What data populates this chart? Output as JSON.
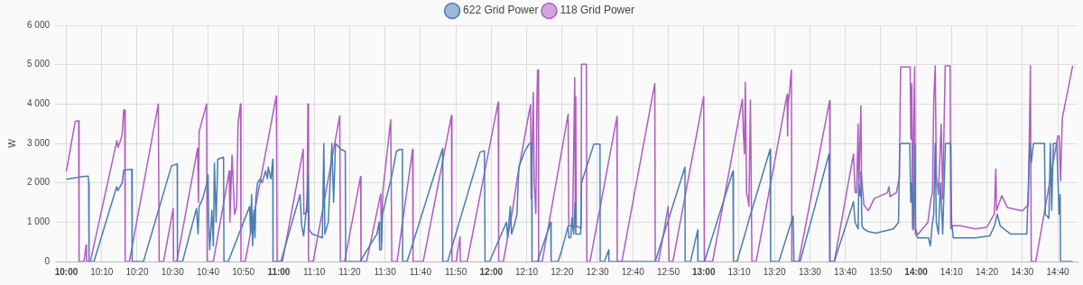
{
  "chart_data": {
    "type": "line",
    "ylabel": "W",
    "legend": "top",
    "grid": true,
    "marker": "none",
    "line_style": "solid",
    "xlim": [
      9.947,
      14.76
    ],
    "xticks": [
      {
        "value": 10,
        "label": "10:00"
      },
      {
        "value": 10.1667,
        "label": "10:10"
      },
      {
        "value": 10.3333,
        "label": "10:20"
      },
      {
        "value": 10.5,
        "label": "10:30"
      },
      {
        "value": 10.6667,
        "label": "10:40"
      },
      {
        "value": 10.8333,
        "label": "10:50"
      },
      {
        "value": 11,
        "label": "11:00"
      },
      {
        "value": 11.1667,
        "label": "11:10"
      },
      {
        "value": 11.3333,
        "label": "11:20"
      },
      {
        "value": 11.5,
        "label": "11:30"
      },
      {
        "value": 11.6667,
        "label": "11:40"
      },
      {
        "value": 11.8333,
        "label": "11:50"
      },
      {
        "value": 12,
        "label": "12:00"
      },
      {
        "value": 12.1667,
        "label": "12:10"
      },
      {
        "value": 12.3333,
        "label": "12:20"
      },
      {
        "value": 12.5,
        "label": "12:30"
      },
      {
        "value": 12.6667,
        "label": "12:40"
      },
      {
        "value": 12.8333,
        "label": "12:50"
      },
      {
        "value": 13,
        "label": "13:00"
      },
      {
        "value": 13.1667,
        "label": "13:10"
      },
      {
        "value": 13.3333,
        "label": "13:20"
      },
      {
        "value": 13.5,
        "label": "13:30"
      },
      {
        "value": 13.6667,
        "label": "13:40"
      },
      {
        "value": 13.8333,
        "label": "13:50"
      },
      {
        "value": 14,
        "label": "14:00"
      },
      {
        "value": 14.1667,
        "label": "14:10"
      },
      {
        "value": 14.3333,
        "label": "14:20"
      },
      {
        "value": 14.5,
        "label": "14:30"
      },
      {
        "value": 14.6667,
        "label": "14:40"
      }
    ],
    "ylim": [
      0,
      6000
    ],
    "yticks": [
      0,
      {
        "value": 1000,
        "label": "1 000"
      },
      {
        "value": 2000,
        "label": "2 000"
      },
      {
        "value": 3000,
        "label": "3 000"
      },
      {
        "value": 4000,
        "label": "4 000"
      },
      {
        "value": 5000,
        "label": "5 000"
      },
      {
        "value": 6000,
        "label": "6 000"
      }
    ],
    "series": [
      {
        "name": "622 Grid Power",
        "color": "#4a7db0",
        "x": [
          10.0,
          10.033,
          10.067,
          10.103,
          10.105,
          10.107,
          10.13,
          10.237,
          10.243,
          10.253,
          10.263,
          10.27,
          10.308,
          10.31,
          10.363,
          10.495,
          10.522,
          10.523,
          10.547,
          10.613,
          10.62,
          10.625,
          10.642,
          10.662,
          10.667,
          10.67,
          10.675,
          10.685,
          10.692,
          10.697,
          10.705,
          10.713,
          10.74,
          10.742,
          10.762,
          10.863,
          10.867,
          10.872,
          10.877,
          10.883,
          10.888,
          10.892,
          10.9,
          10.912,
          10.922,
          10.938,
          10.947,
          10.95,
          10.963,
          10.972,
          10.973,
          11.01,
          11.1,
          11.108,
          11.117,
          11.133,
          11.138,
          11.143,
          11.158,
          11.183,
          11.205,
          11.212,
          11.217,
          11.233,
          11.25,
          11.258,
          11.267,
          11.292,
          11.313,
          11.315,
          11.383,
          11.462,
          11.472,
          11.475,
          11.483,
          11.488,
          11.533,
          11.554,
          11.565,
          11.582,
          11.583,
          11.604,
          11.771,
          11.772,
          11.795,
          11.947,
          11.968,
          11.971,
          11.992,
          12.072,
          12.077,
          12.09,
          12.096,
          12.107,
          12.121,
          12.13,
          12.158,
          12.18,
          12.19,
          12.192,
          12.218,
          12.28,
          12.282,
          12.315,
          12.33,
          12.362,
          12.365,
          12.375,
          12.379,
          12.388,
          12.395,
          12.398,
          12.421,
          12.425,
          12.483,
          12.512,
          12.513,
          12.533,
          12.553,
          12.554,
          12.772,
          12.912,
          12.913,
          12.938,
          12.972,
          12.973,
          13.004,
          13.138,
          13.14,
          13.157,
          13.205,
          13.213,
          13.313,
          13.315,
          13.354,
          13.421,
          13.425,
          13.454,
          13.59,
          13.593,
          13.615,
          13.705,
          13.713,
          13.727,
          13.73,
          13.737,
          13.74,
          13.745,
          13.754,
          13.775,
          13.81,
          13.893,
          13.917,
          13.923,
          13.93,
          13.97,
          13.975,
          13.98,
          13.987,
          13.995,
          13.997,
          14.008,
          14.058,
          14.067,
          14.075,
          14.083,
          14.09,
          14.095,
          14.105,
          14.115,
          14.125,
          14.138,
          14.163,
          14.167,
          14.175,
          14.278,
          14.347,
          14.368,
          14.382,
          14.396,
          14.445,
          14.521,
          14.535,
          14.542,
          14.552,
          14.604,
          14.608,
          14.625,
          14.632,
          14.638,
          14.646,
          14.662,
          14.673,
          14.678,
          14.68,
          14.737
        ],
        "values": [
          2090,
          2120,
          2150,
          2170,
          2000,
          0,
          0,
          1900,
          1800,
          1900,
          2000,
          2320,
          2340,
          0,
          0,
          2430,
          2480,
          0,
          0,
          1350,
          700,
          1400,
          1600,
          2000,
          2200,
          1000,
          300,
          1300,
          400,
          2500,
          1000,
          2600,
          2650,
          0,
          0,
          1400,
          700,
          1700,
          400,
          1300,
          600,
          1600,
          2000,
          2100,
          2000,
          2300,
          2100,
          2400,
          2100,
          2600,
          0,
          0,
          1700,
          900,
          650,
          1500,
          2200,
          800,
          700,
          650,
          600,
          3000,
          700,
          1000,
          3000,
          1500,
          3000,
          2850,
          2800,
          0,
          0,
          700,
          1000,
          300,
          300,
          1200,
          2200,
          2800,
          2840,
          2850,
          0,
          0,
          2870,
          0,
          0,
          2780,
          2810,
          0,
          0,
          1000,
          600,
          1400,
          700,
          900,
          1200,
          2400,
          2800,
          3000,
          3000,
          0,
          0,
          1000,
          0,
          0,
          250,
          900,
          600,
          620,
          1100,
          700,
          1500,
          700,
          700,
          2000,
          2980,
          2980,
          0,
          0,
          300,
          0,
          0,
          2400,
          0,
          0,
          800,
          0,
          0,
          2300,
          0,
          0,
          900,
          1060,
          2850,
          0,
          0,
          1150,
          0,
          0,
          2730,
          0,
          0,
          1520,
          990,
          830,
          1970,
          1660,
          2280,
          900,
          830,
          760,
          720,
          830,
          990,
          2960,
          3000,
          3000,
          1500,
          2000,
          800,
          3000,
          700,
          600,
          600,
          400,
          900,
          1200,
          3000,
          1000,
          700,
          2000,
          700,
          3000,
          3000,
          1000,
          600,
          600,
          650,
          900,
          1200,
          900,
          700,
          700,
          3000,
          2500,
          3000,
          3000,
          1200,
          1100,
          3000,
          1300,
          3000,
          3000,
          1200,
          1700,
          0,
          0
        ]
      },
      {
        "name": "118 Grid Power",
        "color": "#b05cc0",
        "x": [
          10.0,
          10.042,
          10.058,
          10.06,
          10.083,
          10.093,
          10.095,
          10.113,
          10.238,
          10.243,
          10.257,
          10.263,
          10.27,
          10.275,
          10.277,
          10.297,
          10.433,
          10.437,
          10.458,
          10.503,
          10.505,
          10.52,
          10.618,
          10.622,
          10.625,
          10.655,
          10.66,
          10.663,
          10.692,
          10.767,
          10.77,
          10.78,
          10.792,
          10.802,
          10.808,
          10.82,
          10.822,
          10.842,
          10.988,
          10.99,
          10.992,
          11.017,
          11.115,
          11.118,
          11.133,
          11.137,
          11.14,
          11.162,
          11.287,
          11.29,
          11.31,
          11.385,
          11.387,
          11.413,
          11.48,
          11.483,
          11.49,
          11.527,
          11.532,
          11.557,
          11.63,
          11.632,
          11.68,
          11.813,
          11.815,
          11.835,
          11.853,
          11.855,
          11.887,
          12.033,
          12.035,
          12.057,
          12.1,
          12.125,
          12.185,
          12.188,
          12.198,
          12.202,
          12.21,
          12.215,
          12.218,
          12.222,
          12.223,
          12.24,
          12.362,
          12.365,
          12.383,
          12.393,
          12.396,
          12.398,
          12.4,
          12.423,
          12.425,
          12.448,
          12.45,
          12.465,
          12.592,
          12.593,
          12.615,
          12.77,
          12.772,
          12.788,
          12.833,
          12.837,
          12.855,
          13.0,
          13.004,
          13.042,
          13.182,
          13.187,
          13.192,
          13.196,
          13.202,
          13.208,
          13.213,
          13.22,
          13.223,
          13.227,
          13.247,
          13.393,
          13.395,
          13.397,
          13.413,
          13.415,
          13.447,
          13.593,
          13.595,
          13.615,
          13.705,
          13.713,
          13.72,
          13.727,
          13.73,
          13.74,
          13.743,
          13.754,
          13.775,
          13.803,
          13.865,
          13.872,
          13.877,
          13.907,
          13.921,
          13.927,
          13.972,
          13.975,
          13.98,
          13.983,
          13.988,
          13.993,
          13.997,
          14.007,
          14.055,
          14.07,
          14.077,
          14.083,
          14.09,
          14.095,
          14.105,
          14.118,
          14.125,
          14.137,
          14.16,
          14.163,
          14.173,
          14.208,
          14.278,
          14.333,
          14.368,
          14.375,
          14.379,
          14.403,
          14.43,
          14.5,
          14.528,
          14.538,
          14.542,
          14.563,
          14.667,
          14.673,
          14.68,
          14.688,
          14.737
        ],
        "values": [
          2290,
          3560,
          3570,
          0,
          0,
          420,
          0,
          0,
          3070,
          2900,
          3100,
          3250,
          3850,
          3850,
          0,
          0,
          4000,
          0,
          0,
          1350,
          0,
          0,
          2880,
          1500,
          3300,
          3900,
          4000,
          0,
          0,
          2300,
          1000,
          2700,
          1200,
          1400,
          3500,
          4000,
          0,
          0,
          4200,
          3000,
          0,
          0,
          2850,
          1200,
          1250,
          4000,
          0,
          0,
          3700,
          0,
          0,
          2160,
          0,
          0,
          1720,
          500,
          1800,
          3600,
          0,
          0,
          2850,
          0,
          0,
          3710,
          0,
          0,
          630,
          0,
          0,
          4050,
          0,
          0,
          1290,
          2200,
          3990,
          1600,
          4290,
          2050,
          1220,
          4000,
          4860,
          4860,
          0,
          0,
          3740,
          910,
          900,
          4670,
          1200,
          4180,
          900,
          850,
          5010,
          5010,
          0,
          0,
          3680,
          0,
          0,
          4520,
          0,
          0,
          1400,
          0,
          0,
          4190,
          0,
          0,
          4120,
          3260,
          2730,
          4550,
          1750,
          1600,
          1400,
          4100,
          2500,
          0,
          0,
          4250,
          3190,
          3900,
          4860,
          0,
          0,
          4090,
          0,
          0,
          2730,
          1750,
          1750,
          3490,
          1750,
          3950,
          2200,
          1440,
          1290,
          1600,
          1750,
          1900,
          1650,
          1750,
          2130,
          4940,
          4940,
          3110,
          4520,
          830,
          3110,
          4940,
          830,
          680,
          990,
          1600,
          1750,
          4100,
          4970,
          2200,
          1700,
          3490,
          1600,
          4970,
          4970,
          830,
          910,
          910,
          830,
          870,
          1210,
          2350,
          1300,
          1670,
          1370,
          1290,
          1440,
          4970,
          0,
          0,
          3190,
          3190,
          2050,
          3640,
          4970
        ]
      }
    ]
  }
}
